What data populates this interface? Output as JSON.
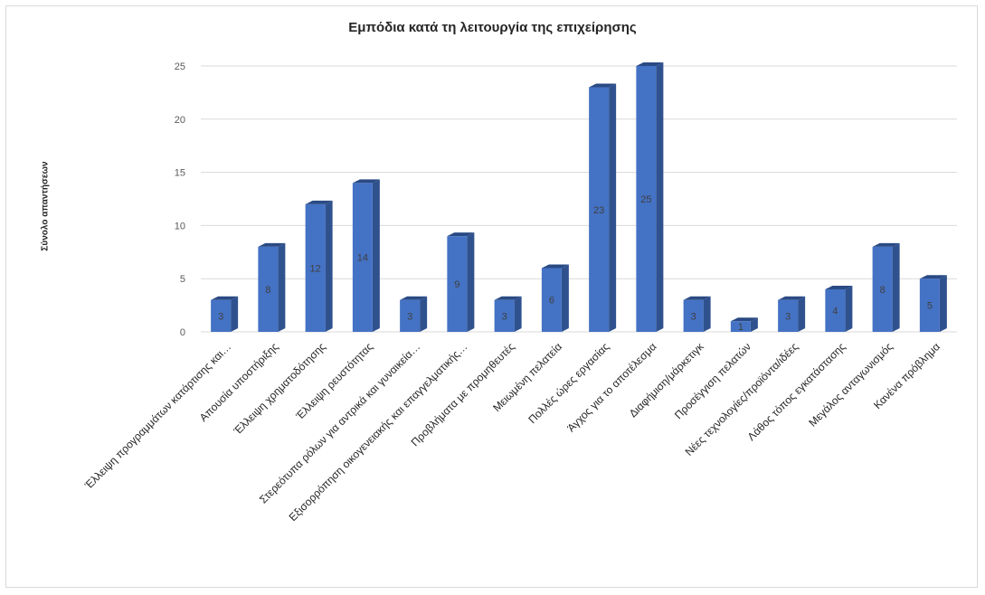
{
  "chart_data": {
    "type": "bar",
    "title": "Εμπόδια κατά τη λειτουργία της επιχείρησης",
    "ylabel": "Σύνολο απαντήσεων",
    "xlabel": "",
    "ylim": [
      0,
      25
    ],
    "yticks": [
      0,
      5,
      10,
      15,
      20,
      25
    ],
    "grid": true,
    "categories": [
      "Έλλειψη προγραμμάτων κατάρτισης και…",
      "Απουσία υποστήριξης",
      "Έλλειψη χρηματοδότησης",
      "Έλλειψη ρευστότητας",
      "Στερεότυπα ρόλων για αντρικά και γυναικεία…",
      "Εξισορρόπηση οικογενειακής και επαγγελματικής…",
      "Προβλήματα με προμηθευτές",
      "Μειωμένη πελατεία",
      "Πολλές ώρες εργασίας",
      "Άγχος για το αποτέλεσμα",
      "Διαφήμιση/μάρκετιγκ",
      "Προσέγγιση πελατών",
      "Νέες τεχνολογίες/προϊόντα/ιδέες",
      "Λάθος τόπος εγκατάστασης",
      "Μεγάλος ανταγωνισμός",
      "Κανένα πρόβλημα"
    ],
    "values": [
      3,
      8,
      12,
      14,
      3,
      9,
      3,
      6,
      23,
      25,
      3,
      1,
      3,
      4,
      8,
      5
    ],
    "colors": {
      "bar_front": "#4472c4",
      "bar_side": "#2f528f",
      "bar_top": "#2a4a84",
      "grid": "#d9d9d9",
      "text": "#595959"
    }
  }
}
